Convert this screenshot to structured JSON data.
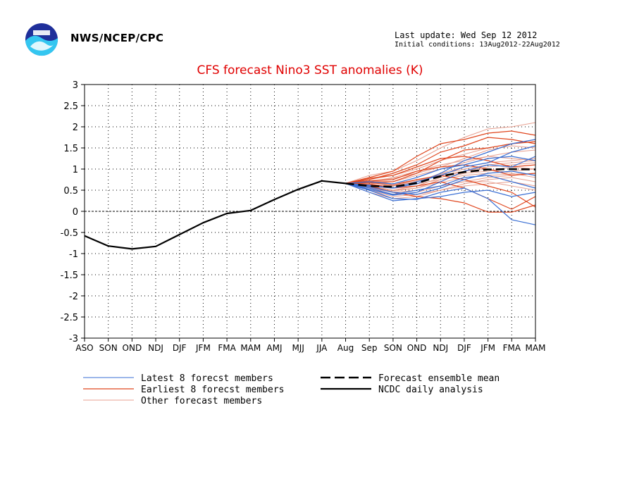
{
  "header": {
    "org": "NWS/NCEP/CPC",
    "last_update": "Last update: Wed Sep 12 2012",
    "initial_conditions": "Initial conditions: 13Aug2012-22Aug2012"
  },
  "colors": {
    "latest": "#3a6fd4",
    "earliest": "#e0461e",
    "other": "#e8a090",
    "mean": "#000000",
    "analysis": "#000000",
    "title": "#e00000"
  },
  "chart_data": {
    "type": "line",
    "title": "CFS forecast Nino3 SST anomalies (K)",
    "xlabel": "",
    "ylabel": "",
    "categories": [
      "ASO",
      "SON",
      "OND",
      "NDJ",
      "DJF",
      "JFM",
      "FMA",
      "MAM",
      "AMJ",
      "MJJ",
      "JJA",
      "Aug",
      "Sep",
      "SON",
      "OND",
      "NDJ",
      "DJF",
      "JFM",
      "FMA",
      "MAM"
    ],
    "ylim": [
      -3,
      3
    ],
    "yticks": [
      3,
      2.5,
      2,
      1.5,
      1,
      0.5,
      0,
      -0.5,
      -1,
      -1.5,
      -2,
      -2.5,
      -3
    ],
    "grid": true,
    "legend": [
      {
        "label": "Latest 8 forecst members",
        "series": "latest"
      },
      {
        "label": "Earliest 8 forecst members",
        "series": "earliest"
      },
      {
        "label": "Other forecast members",
        "series": "other"
      },
      {
        "label": "Forecast ensemble mean",
        "series": "mean"
      },
      {
        "label": "NCDC daily analysis",
        "series": "analysis"
      }
    ],
    "analysis": {
      "x_start": "ASO",
      "values": [
        -0.58,
        -0.82,
        -0.89,
        -0.83,
        -0.55,
        -0.27,
        -0.05,
        0.02,
        0.28,
        0.52,
        0.72,
        0.66
      ]
    },
    "ensemble_mean": {
      "x_start": "Aug",
      "values": [
        0.66,
        0.6,
        0.58,
        0.67,
        0.83,
        0.93,
        0.99,
        1.0,
        0.99
      ]
    },
    "members": {
      "x_start": "Aug",
      "latest": [
        [
          0.66,
          0.5,
          0.3,
          0.28,
          0.45,
          0.55,
          0.3,
          -0.2,
          -0.32
        ],
        [
          0.66,
          0.55,
          0.4,
          0.5,
          0.6,
          0.8,
          0.85,
          0.7,
          0.55
        ],
        [
          0.66,
          0.7,
          0.65,
          0.8,
          1.0,
          1.1,
          1.25,
          1.3,
          1.2
        ],
        [
          0.66,
          0.6,
          0.55,
          0.7,
          0.85,
          1.05,
          1.15,
          1.4,
          1.55
        ],
        [
          0.66,
          0.45,
          0.25,
          0.3,
          0.35,
          0.45,
          0.5,
          0.35,
          0.45
        ],
        [
          0.66,
          0.62,
          0.55,
          0.65,
          0.9,
          1.2,
          1.4,
          1.6,
          1.7
        ],
        [
          0.66,
          0.58,
          0.45,
          0.4,
          0.55,
          0.75,
          0.9,
          0.95,
          0.85
        ],
        [
          0.66,
          0.52,
          0.38,
          0.45,
          0.7,
          0.95,
          1.1,
          1.05,
          1.3
        ]
      ],
      "earliest": [
        [
          0.66,
          0.8,
          0.95,
          1.3,
          1.6,
          1.7,
          1.85,
          1.9,
          1.8
        ],
        [
          0.66,
          0.75,
          0.9,
          1.1,
          1.4,
          1.55,
          1.75,
          1.7,
          1.6
        ],
        [
          0.66,
          0.7,
          0.7,
          0.9,
          1.2,
          1.45,
          1.5,
          1.6,
          1.65
        ],
        [
          0.66,
          0.6,
          0.45,
          0.35,
          0.3,
          0.2,
          -0.02,
          -0.02,
          0.15
        ],
        [
          0.66,
          0.65,
          0.55,
          0.6,
          0.7,
          0.55,
          0.3,
          0.05,
          0.35
        ],
        [
          0.66,
          0.72,
          0.75,
          0.95,
          1.05,
          1.1,
          1.0,
          0.85,
          0.9
        ],
        [
          0.66,
          0.68,
          0.62,
          0.75,
          0.85,
          0.75,
          0.6,
          0.45,
          0.1
        ],
        [
          0.66,
          0.78,
          0.85,
          1.05,
          1.25,
          1.3,
          1.2,
          1.05,
          1.1
        ]
      ],
      "other": [
        [
          0.66,
          0.85,
          0.95,
          1.2,
          1.5,
          1.75,
          1.95,
          2.0,
          2.1
        ],
        [
          0.66,
          0.6,
          0.5,
          0.55,
          0.75,
          0.9,
          0.95,
          1.05,
          1.0
        ],
        [
          0.66,
          0.55,
          0.45,
          0.5,
          0.6,
          0.7,
          0.8,
          0.85,
          0.9
        ],
        [
          0.66,
          0.65,
          0.7,
          0.85,
          1.0,
          1.15,
          1.3,
          1.4,
          1.45
        ],
        [
          0.66,
          0.5,
          0.35,
          0.4,
          0.5,
          0.6,
          0.65,
          0.7,
          0.6
        ],
        [
          0.66,
          0.7,
          0.8,
          0.95,
          1.1,
          1.2,
          1.3,
          1.25,
          1.2
        ],
        [
          0.66,
          0.62,
          0.6,
          0.7,
          0.9,
          1.05,
          1.15,
          1.2,
          1.25
        ],
        [
          0.66,
          0.58,
          0.5,
          0.6,
          0.8,
          0.95,
          1.0,
          0.9,
          0.8
        ],
        [
          0.66,
          0.72,
          0.78,
          0.9,
          1.05,
          1.25,
          1.45,
          1.55,
          1.5
        ],
        [
          0.66,
          0.45,
          0.3,
          0.35,
          0.5,
          0.65,
          0.75,
          0.8,
          0.7
        ],
        [
          0.66,
          0.68,
          0.65,
          0.75,
          0.85,
          0.95,
          1.05,
          1.1,
          1.15
        ],
        [
          0.66,
          0.6,
          0.55,
          0.65,
          0.75,
          0.85,
          0.9,
          0.95,
          1.0
        ],
        [
          0.66,
          0.75,
          0.85,
          1.0,
          1.2,
          1.35,
          1.5,
          1.6,
          1.7
        ],
        [
          0.66,
          0.52,
          0.4,
          0.45,
          0.6,
          0.7,
          0.7,
          0.6,
          0.5
        ],
        [
          0.66,
          0.64,
          0.6,
          0.72,
          0.88,
          1.0,
          1.1,
          1.15,
          1.2
        ],
        [
          0.66,
          0.56,
          0.48,
          0.55,
          0.68,
          0.8,
          0.85,
          0.88,
          0.9
        ]
      ]
    }
  }
}
